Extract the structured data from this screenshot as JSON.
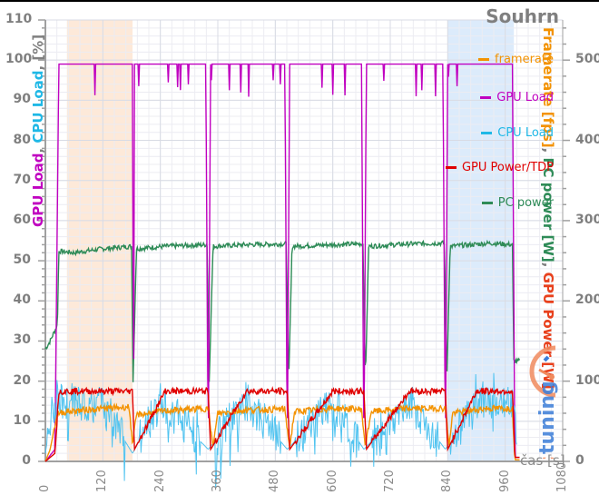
{
  "chart_data": {
    "type": "line",
    "title": "Souhrn",
    "xlabel": "čas [s]",
    "xlim": [
      0,
      1080
    ],
    "x_ticks": [
      0,
      120,
      240,
      360,
      480,
      600,
      720,
      840,
      960,
      1080
    ],
    "y_left": {
      "label_parts": [
        {
          "text": "GPU Load",
          "color": "#c000c0"
        },
        {
          "text": ", ",
          "color": "#7f7f7f"
        },
        {
          "text": "CPU Load",
          "color": "#1fb8e6"
        },
        {
          "text": ", [%]",
          "color": "#7f7f7f"
        }
      ],
      "lim": [
        0,
        110
      ],
      "ticks": [
        0,
        10,
        20,
        30,
        40,
        50,
        60,
        70,
        80,
        90,
        100,
        110
      ]
    },
    "y_right": {
      "label_parts": [
        {
          "text": "Framerate [fps]",
          "color": "#f39200"
        },
        {
          "text": ", ",
          "color": "#7f7f7f"
        },
        {
          "text": "PC power [W]",
          "color": "#2e8b57"
        },
        {
          "text": ", ",
          "color": "#7f7f7f"
        },
        {
          "text": "GPU Power [W]",
          "color": "#e8401c"
        }
      ],
      "lim": [
        0,
        550
      ],
      "ticks": [
        0,
        100,
        200,
        300,
        400,
        500
      ]
    },
    "grid": true,
    "legend_position": "right-inside",
    "highlight_bands": [
      {
        "x0": 45,
        "x1": 182,
        "color": "#fde9d9"
      },
      {
        "x0": 840,
        "x1": 978,
        "color": "#dcebfb"
      }
    ],
    "series": [
      {
        "name": "framerate",
        "color": "#f39200",
        "axis": "right",
        "approx_steady": 65,
        "x": [
          0,
          10,
          25,
          45,
          100,
          175,
          182,
          190,
          250,
          340,
          350,
          360,
          420,
          500,
          510,
          520,
          600,
          660,
          668,
          680,
          760,
          835,
          843,
          850,
          920,
          975,
          980,
          990
        ],
        "values": [
          0,
          15,
          60,
          62,
          65,
          68,
          20,
          58,
          63,
          66,
          18,
          60,
          64,
          65,
          17,
          62,
          66,
          65,
          18,
          62,
          66,
          66,
          20,
          60,
          66,
          66,
          2,
          2
        ]
      },
      {
        "name": "GPU Load",
        "color": "#c000c0",
        "axis": "left",
        "approx_steady": 99,
        "x": [
          0,
          20,
          28,
          30,
          182,
          184,
          186,
          335,
          340,
          345,
          500,
          505,
          510,
          660,
          665,
          670,
          830,
          835,
          840,
          975,
          980,
          990
        ],
        "values": [
          0,
          3,
          99,
          99,
          99,
          1,
          99,
          99,
          1,
          99,
          99,
          1,
          99,
          99,
          1,
          99,
          99,
          1,
          99,
          99,
          1,
          1
        ]
      },
      {
        "name": "CPU Load",
        "color": "#4fc3f0",
        "axis": "left",
        "approx_steady": 15,
        "x": [
          0,
          10,
          28,
          60,
          120,
          182,
          240,
          340,
          420,
          505,
          600,
          665,
          760,
          835,
          900,
          975,
          985
        ],
        "values": [
          2,
          10,
          16,
          15,
          14,
          2,
          15,
          3,
          15,
          3,
          15,
          3,
          15,
          3,
          15,
          15,
          3
        ]
      },
      {
        "name": "GPU Power/TDP",
        "color": "#e00000",
        "axis": "left",
        "approx_steady": 17.5,
        "x": [
          0,
          20,
          28,
          100,
          182,
          186,
          250,
          340,
          345,
          420,
          505,
          510,
          600,
          665,
          670,
          760,
          835,
          840,
          900,
          975,
          980,
          990
        ],
        "values": [
          0,
          2,
          17.5,
          17.5,
          17.5,
          3,
          17.5,
          17.5,
          3,
          17.5,
          17.5,
          3,
          17.5,
          17.5,
          3,
          17.5,
          17.5,
          3,
          17.5,
          17.5,
          1,
          1
        ]
      },
      {
        "name": "PC power",
        "color": "#2e8b57",
        "axis": "right",
        "approx_steady": 268,
        "x": [
          0,
          10,
          25,
          28,
          60,
          120,
          180,
          183,
          190,
          250,
          338,
          342,
          350,
          420,
          503,
          508,
          515,
          600,
          663,
          668,
          675,
          760,
          833,
          838,
          845,
          930,
          975,
          978,
          990
        ],
        "values": [
          140,
          150,
          170,
          262,
          260,
          265,
          268,
          100,
          265,
          268,
          270,
          100,
          268,
          270,
          271,
          100,
          268,
          270,
          271,
          100,
          268,
          271,
          272,
          100,
          268,
          272,
          270,
          125,
          125
        ]
      }
    ]
  },
  "legend": [
    {
      "label": "framerate",
      "color": "#f39200"
    },
    {
      "label": "GPU Load",
      "color": "#c000c0"
    },
    {
      "label": "CPU Load",
      "color": "#1fb8e6"
    },
    {
      "label": "GPU Power/TDP",
      "color": "#e00000"
    },
    {
      "label": "PC power",
      "color": "#2e8b57"
    }
  ],
  "watermark": {
    "text": "pctuning"
  }
}
